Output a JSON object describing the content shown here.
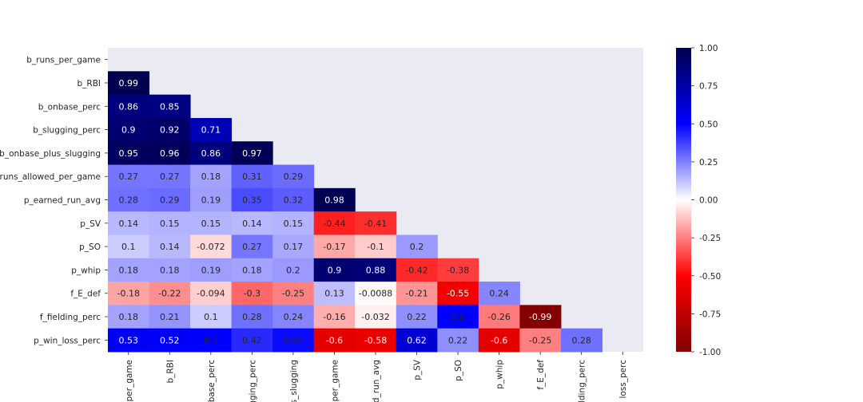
{
  "chart_data": {
    "type": "heatmap",
    "variant": "lower-triangle correlation matrix with annotations",
    "row_labels": [
      "b_runs_per_game",
      "b_RBI",
      "b_onbase_perc",
      "b_slugging_perc",
      "b_onbase_plus_slugging",
      "runs_allowed_per_game",
      "p_earned_run_avg",
      "p_SV",
      "p_SO",
      "p_whip",
      "f_E_def",
      "f_fielding_perc",
      "p_win_loss_perc"
    ],
    "col_labels": [
      "per_game",
      "b_RBI",
      "base_perc",
      "gging_perc",
      "s_slugging",
      "per_game",
      "d_run_avg",
      "p_SV",
      "p_SO",
      "p_whip",
      "f_E_def",
      "lding_perc",
      "loss_perc"
    ],
    "values": [
      [],
      [
        0.99
      ],
      [
        0.86,
        0.85
      ],
      [
        0.9,
        0.92,
        0.71
      ],
      [
        0.95,
        0.96,
        0.86,
        0.97
      ],
      [
        0.27,
        0.27,
        0.18,
        0.31,
        0.29
      ],
      [
        0.28,
        0.29,
        0.19,
        0.35,
        0.32,
        0.98
      ],
      [
        0.14,
        0.15,
        0.15,
        0.14,
        0.15,
        -0.44,
        -0.41
      ],
      [
        0.1,
        0.14,
        -0.072,
        0.27,
        0.17,
        -0.17,
        -0.1,
        0.2
      ],
      [
        0.18,
        0.18,
        0.19,
        0.18,
        0.2,
        0.9,
        0.88,
        -0.42,
        -0.38
      ],
      [
        -0.18,
        -0.22,
        -0.094,
        -0.3,
        -0.25,
        0.13,
        -0.0088,
        -0.21,
        -0.55,
        0.24
      ],
      [
        0.18,
        0.21,
        0.1,
        0.28,
        0.24,
        -0.16,
        -0.032,
        0.22,
        0.5,
        -0.26,
        -0.99
      ],
      [
        0.53,
        0.52,
        0.5,
        0.42,
        0.48,
        -0.6,
        -0.58,
        0.62,
        0.22,
        -0.6,
        -0.25,
        0.28
      ]
    ],
    "value_labels": [
      [],
      [
        "0.99"
      ],
      [
        "0.86",
        "0.85"
      ],
      [
        "0.9",
        "0.92",
        "0.71"
      ],
      [
        "0.95",
        "0.96",
        "0.86",
        "0.97"
      ],
      [
        "0.27",
        "0.27",
        "0.18",
        "0.31",
        "0.29"
      ],
      [
        "0.28",
        "0.29",
        "0.19",
        "0.35",
        "0.32",
        "0.98"
      ],
      [
        "0.14",
        "0.15",
        "0.15",
        "0.14",
        "0.15",
        "-0.44",
        "-0.41"
      ],
      [
        "0.1",
        "0.14",
        "-0.072",
        "0.27",
        "0.17",
        "-0.17",
        "-0.1",
        "0.2"
      ],
      [
        "0.18",
        "0.18",
        "0.19",
        "0.18",
        "0.2",
        "0.9",
        "0.88",
        "-0.42",
        "-0.38"
      ],
      [
        "-0.18",
        "-0.22",
        "-0.094",
        "-0.3",
        "-0.25",
        "0.13",
        "-0.0088",
        "-0.21",
        "-0.55",
        "0.24"
      ],
      [
        "0.18",
        "0.21",
        "0.1",
        "0.28",
        "0.24",
        "-0.16",
        "-0.032",
        "0.22",
        "0.5",
        "-0.26",
        "-0.99"
      ],
      [
        "0.53",
        "0.52",
        "0.5",
        "0.42",
        "0.48",
        "-0.6",
        "-0.58",
        "0.62",
        "0.22",
        "-0.6",
        "-0.25",
        "0.28"
      ]
    ],
    "colormap": "seismic_r",
    "colormap_stops": [
      "#7f0000",
      "#ff0000",
      "#ffffff",
      "#0000ff",
      "#00004c"
    ],
    "vmin": -1.0,
    "vmax": 1.0,
    "colorbar_ticks": [
      "1.00",
      "0.75",
      "0.50",
      "0.25",
      "0.00",
      "-0.25",
      "-0.50",
      "-0.75",
      "-1.00"
    ],
    "colorbar_tick_values": [
      1.0,
      0.75,
      0.5,
      0.25,
      0.0,
      -0.25,
      -0.5,
      -0.75,
      -1.0
    ],
    "axes_background": "#eaeaf2",
    "grid": false,
    "legend": "colorbar right"
  }
}
